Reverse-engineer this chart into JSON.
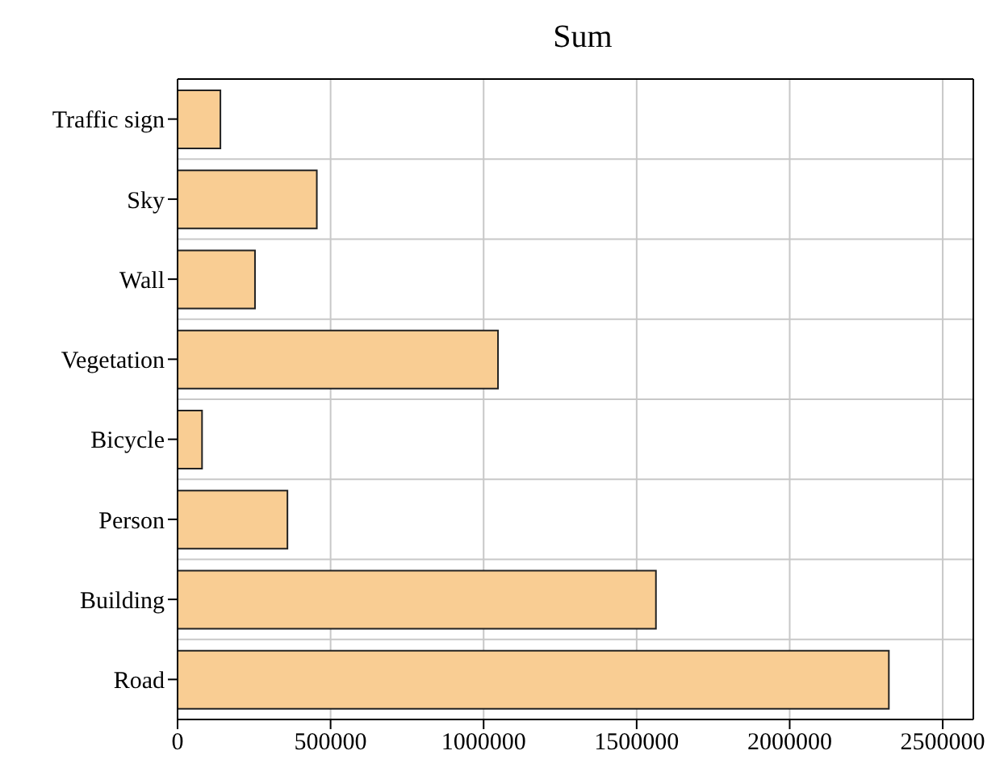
{
  "chart_data": {
    "type": "bar",
    "orientation": "horizontal",
    "title": "Sum",
    "categories": [
      "Traffic sign",
      "Sky",
      "Wall",
      "Vegetation",
      "Bicycle",
      "Person",
      "Building",
      "Road"
    ],
    "values": [
      140000,
      455000,
      253000,
      1047000,
      80000,
      359000,
      1563000,
      2324000
    ],
    "color": "#f9cd93",
    "xlim": [
      0,
      2600000
    ],
    "xticks": [
      0,
      500000,
      1000000,
      1500000,
      2000000,
      2500000
    ],
    "grid": true
  }
}
